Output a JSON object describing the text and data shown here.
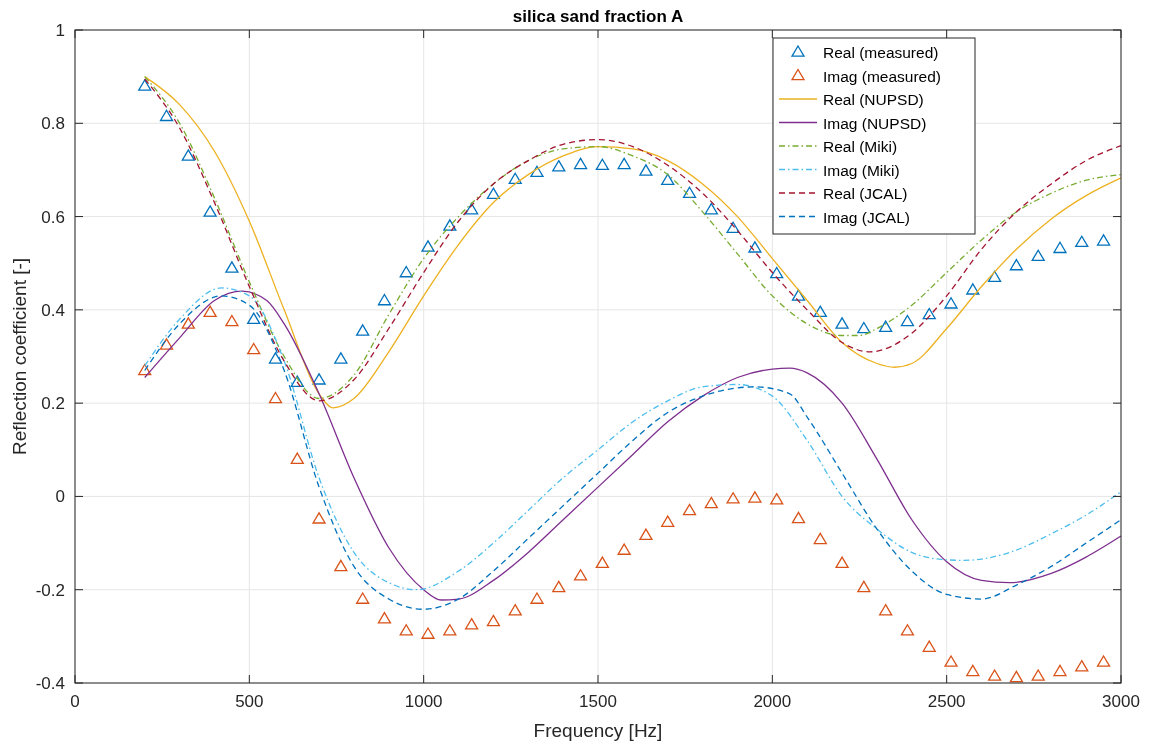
{
  "chart_data": {
    "type": "line",
    "title": "silica sand fraction A",
    "xlabel": "Frequency [Hz]",
    "ylabel": "Reflection coefficient [-]",
    "xlim": [
      0,
      3000
    ],
    "xticks": [
      0,
      500,
      1000,
      1500,
      2000,
      2500,
      3000
    ],
    "ylim": [
      -0.4,
      1
    ],
    "yticks": [
      -0.4,
      -0.2,
      0,
      0.2,
      0.4,
      0.6,
      0.8,
      1
    ],
    "grid": true,
    "legend": "top right",
    "series": [
      {
        "name": "Real (measured)",
        "type": "scatter",
        "marker": "triangle",
        "color": "#0072bd",
        "x": [
          200,
          262.5,
          325,
          387.5,
          450,
          512.5,
          575,
          637.5,
          700,
          762.5,
          825,
          887.5,
          950,
          1012.5,
          1075,
          1137.5,
          1200,
          1262.5,
          1325,
          1387.5,
          1450,
          1512.5,
          1575,
          1637.5,
          1700,
          1762.5,
          1825,
          1887.5,
          1950,
          2012.5,
          2075,
          2137.5,
          2200,
          2262.5,
          2325,
          2387.5,
          2450,
          2512.5,
          2575,
          2637.5,
          2700,
          2762.5,
          2825,
          2887.5,
          2950
        ],
        "values": [
          0.88,
          0.815,
          0.73,
          0.61,
          0.49,
          0.38,
          0.295,
          0.245,
          0.25,
          0.295,
          0.355,
          0.42,
          0.48,
          0.535,
          0.58,
          0.615,
          0.648,
          0.68,
          0.695,
          0.707,
          0.712,
          0.71,
          0.712,
          0.698,
          0.678,
          0.65,
          0.615,
          0.575,
          0.533,
          0.478,
          0.43,
          0.395,
          0.37,
          0.36,
          0.363,
          0.375,
          0.39,
          0.413,
          0.443,
          0.47,
          0.495,
          0.515,
          0.532,
          0.545,
          0.548
        ]
      },
      {
        "name": "Imag (measured)",
        "type": "scatter",
        "marker": "triangle",
        "color": "#d95319",
        "x": [
          200,
          262.5,
          325,
          387.5,
          450,
          512.5,
          575,
          637.5,
          700,
          762.5,
          825,
          887.5,
          950,
          1012.5,
          1075,
          1137.5,
          1200,
          1262.5,
          1325,
          1387.5,
          1450,
          1512.5,
          1575,
          1637.5,
          1700,
          1762.5,
          1825,
          1887.5,
          1950,
          2012.5,
          2075,
          2137.5,
          2200,
          2262.5,
          2325,
          2387.5,
          2450,
          2512.5,
          2575,
          2637.5,
          2700,
          2762.5,
          2825,
          2887.5,
          2950
        ],
        "values": [
          0.27,
          0.325,
          0.37,
          0.395,
          0.375,
          0.315,
          0.21,
          0.08,
          -0.048,
          -0.15,
          -0.22,
          -0.262,
          -0.288,
          -0.295,
          -0.288,
          -0.275,
          -0.268,
          -0.245,
          -0.22,
          -0.195,
          -0.17,
          -0.143,
          -0.115,
          -0.083,
          -0.055,
          -0.03,
          -0.015,
          -0.005,
          -0.003,
          -0.007,
          -0.047,
          -0.092,
          -0.143,
          -0.195,
          -0.245,
          -0.288,
          -0.323,
          -0.355,
          -0.375,
          -0.385,
          -0.388,
          -0.385,
          -0.375,
          -0.365,
          -0.355
        ]
      },
      {
        "name": "Real (NUPSD)",
        "line_style": "solid",
        "color": "#edb120",
        "x": [
          200,
          300,
          400,
          500,
          600,
          700,
          740,
          800,
          900,
          1000,
          1100,
          1200,
          1300,
          1400,
          1500,
          1600,
          1700,
          1800,
          1900,
          2000,
          2100,
          2200,
          2300,
          2350,
          2400,
          2500,
          2600,
          2700,
          2800,
          2900,
          3000
        ],
        "values": [
          0.9,
          0.84,
          0.74,
          0.59,
          0.4,
          0.22,
          0.19,
          0.21,
          0.31,
          0.43,
          0.54,
          0.63,
          0.69,
          0.73,
          0.75,
          0.745,
          0.72,
          0.67,
          0.6,
          0.51,
          0.42,
          0.33,
          0.285,
          0.277,
          0.285,
          0.36,
          0.45,
          0.53,
          0.595,
          0.645,
          0.683
        ]
      },
      {
        "name": "Imag (NUPSD)",
        "line_style": "solid",
        "color": "#7e2f8e",
        "x": [
          200,
          300,
          400,
          480,
          550,
          600,
          700,
          800,
          900,
          1000,
          1050,
          1100,
          1200,
          1300,
          1400,
          1500,
          1600,
          1700,
          1800,
          1900,
          2000,
          2050,
          2100,
          2200,
          2300,
          2400,
          2500,
          2600,
          2680,
          2800,
          2900,
          3000
        ],
        "values": [
          0.255,
          0.34,
          0.42,
          0.44,
          0.42,
          0.37,
          0.22,
          0.04,
          -0.11,
          -0.2,
          -0.222,
          -0.22,
          -0.18,
          -0.12,
          -0.05,
          0.02,
          0.09,
          0.16,
          0.215,
          0.255,
          0.273,
          0.275,
          0.265,
          0.2,
          0.08,
          -0.05,
          -0.14,
          -0.18,
          -0.185,
          -0.165,
          -0.13,
          -0.085
        ]
      },
      {
        "name": "Real (Miki)",
        "line_style": "dashdot",
        "color": "#77ac30",
        "x": [
          200,
          300,
          400,
          500,
          600,
          700,
          800,
          900,
          1000,
          1100,
          1200,
          1300,
          1400,
          1500,
          1600,
          1700,
          1800,
          1900,
          2000,
          2100,
          2200,
          2250,
          2300,
          2400,
          2500,
          2600,
          2700,
          2800,
          2900,
          3000
        ],
        "values": [
          0.9,
          0.8,
          0.64,
          0.46,
          0.3,
          0.21,
          0.26,
          0.39,
          0.51,
          0.6,
          0.67,
          0.72,
          0.745,
          0.75,
          0.73,
          0.69,
          0.61,
          0.52,
          0.43,
          0.37,
          0.345,
          0.345,
          0.36,
          0.41,
          0.48,
          0.55,
          0.61,
          0.65,
          0.678,
          0.69
        ]
      },
      {
        "name": "Imag (Miki)",
        "line_style": "dashdot",
        "color": "#4dbeee",
        "x": [
          200,
          300,
          420,
          500,
          600,
          700,
          800,
          900,
          980,
          1100,
          1200,
          1300,
          1400,
          1500,
          1600,
          1700,
          1800,
          1900,
          2000,
          2100,
          2200,
          2300,
          2400,
          2500,
          2550,
          2700,
          2800,
          2900,
          3000
        ],
        "values": [
          0.28,
          0.38,
          0.447,
          0.43,
          0.29,
          0.04,
          -0.12,
          -0.185,
          -0.2,
          -0.16,
          -0.1,
          -0.03,
          0.04,
          0.1,
          0.16,
          0.205,
          0.235,
          0.24,
          0.215,
          0.12,
          0,
          -0.07,
          -0.12,
          -0.136,
          -0.137,
          -0.115,
          -0.08,
          -0.04,
          0.01
        ]
      },
      {
        "name": "Real (JCAL)",
        "line_style": "dashed",
        "color": "#a2142f",
        "x": [
          200,
          300,
          400,
          500,
          600,
          700,
          800,
          900,
          1000,
          1100,
          1200,
          1300,
          1400,
          1500,
          1600,
          1700,
          1800,
          1900,
          2000,
          2100,
          2200,
          2280,
          2400,
          2500,
          2600,
          2700,
          2800,
          2900,
          3000
        ],
        "values": [
          0.895,
          0.79,
          0.63,
          0.45,
          0.29,
          0.205,
          0.25,
          0.36,
          0.48,
          0.59,
          0.67,
          0.72,
          0.755,
          0.765,
          0.75,
          0.71,
          0.65,
          0.57,
          0.48,
          0.4,
          0.33,
          0.31,
          0.35,
          0.43,
          0.53,
          0.61,
          0.67,
          0.72,
          0.752
        ]
      },
      {
        "name": "Imag (JCAL)",
        "line_style": "dashed",
        "color": "#0072bd",
        "x": [
          200,
          300,
          420,
          500,
          600,
          700,
          800,
          900,
          1000,
          1100,
          1200,
          1300,
          1400,
          1500,
          1600,
          1700,
          1800,
          1950,
          2050,
          2100,
          2200,
          2300,
          2400,
          2500,
          2600,
          2700,
          2800,
          2900,
          3000
        ],
        "values": [
          0.27,
          0.37,
          0.43,
          0.41,
          0.27,
          0.02,
          -0.15,
          -0.22,
          -0.242,
          -0.22,
          -0.16,
          -0.09,
          -0.02,
          0.05,
          0.12,
          0.18,
          0.215,
          0.235,
          0.22,
          0.17,
          0.05,
          -0.07,
          -0.16,
          -0.21,
          -0.22,
          -0.19,
          -0.15,
          -0.1,
          -0.05
        ]
      }
    ]
  }
}
